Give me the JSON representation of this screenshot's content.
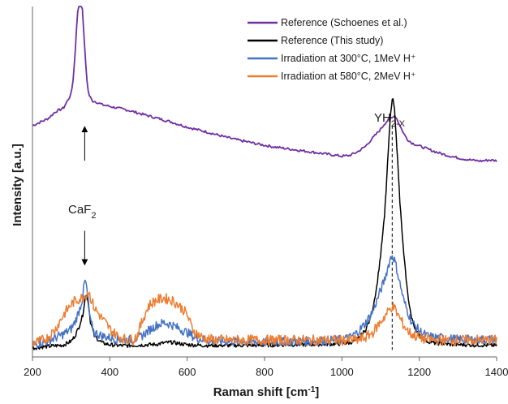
{
  "chart_data": {
    "type": "line",
    "title": "",
    "xlabel_main": "Raman shift [cm",
    "xlabel_sup": "-1",
    "xlabel_end": "]",
    "ylabel": "Intensity [a.u.]",
    "xlim": [
      200,
      1400
    ],
    "ylim": [
      0,
      100
    ],
    "x_ticks": [
      200,
      400,
      600,
      800,
      1000,
      1200,
      1400
    ],
    "x_tick_labels": [
      "200",
      "400",
      "600",
      "800",
      "1000",
      "1200",
      "1400"
    ],
    "grid": false,
    "legend_position": "top-right",
    "series": [
      {
        "name": "Reference (Schoenes et al.)",
        "color": "#7030a0",
        "x": [
          200,
          220,
          240,
          260,
          280,
          290,
          300,
          305,
          310,
          315,
          320,
          325,
          330,
          335,
          340,
          345,
          350,
          355,
          360,
          370,
          380,
          400,
          420,
          440,
          460,
          480,
          500,
          520,
          540,
          560,
          580,
          600,
          620,
          640,
          660,
          680,
          700,
          720,
          740,
          760,
          780,
          800,
          820,
          840,
          860,
          880,
          900,
          920,
          940,
          960,
          980,
          1000,
          1020,
          1040,
          1060,
          1080,
          1100,
          1110,
          1120,
          1130,
          1135,
          1140,
          1150,
          1160,
          1170,
          1180,
          1200,
          1220,
          1240,
          1260,
          1280,
          1300,
          1320,
          1340,
          1360,
          1380,
          1400
        ],
        "values": [
          66,
          67,
          68,
          70,
          71,
          73,
          75,
          79,
          86,
          96,
          102,
          103,
          98,
          88,
          80,
          75,
          74,
          73,
          73,
          72.5,
          72,
          71.5,
          71,
          70.6,
          70,
          69.4,
          68.8,
          68.2,
          67.6,
          67,
          66.3,
          65.6,
          65,
          64.5,
          63.9,
          63.3,
          62.7,
          62.2,
          61.7,
          61.3,
          60.8,
          60.4,
          60,
          59.7,
          59.4,
          59.1,
          58.8,
          58.5,
          58.2,
          57.9,
          57.6,
          57.3,
          57.5,
          58.5,
          60,
          62.5,
          65,
          66.5,
          67.7,
          68.3,
          69,
          68.4,
          66,
          63.7,
          62,
          61.1,
          60.2,
          59.4,
          58.6,
          57.9,
          57.3,
          56.8,
          56.4,
          56.1,
          55.9,
          56.2,
          56
        ]
      },
      {
        "name": "Reference (This study)",
        "color": "#000000",
        "x": [
          200,
          220,
          240,
          260,
          280,
          300,
          310,
          320,
          330,
          335,
          340,
          345,
          350,
          360,
          380,
          400,
          420,
          440,
          460,
          480,
          500,
          520,
          540,
          560,
          580,
          600,
          620,
          640,
          660,
          700,
          740,
          780,
          820,
          860,
          900,
          940,
          980,
          1000,
          1020,
          1040,
          1060,
          1070,
          1080,
          1090,
          1100,
          1110,
          1115,
          1120,
          1125,
          1130,
          1135,
          1140,
          1145,
          1150,
          1160,
          1170,
          1180,
          1190,
          1200,
          1220,
          1240,
          1260,
          1280,
          1300,
          1320,
          1340,
          1360,
          1380,
          1400
        ],
        "values": [
          2.5,
          2.8,
          3,
          3.2,
          3.4,
          4.5,
          6,
          8.5,
          12,
          16,
          18,
          15,
          10,
          6,
          4,
          3.5,
          3.3,
          3.2,
          3.3,
          3.4,
          3.5,
          3.6,
          4,
          4.2,
          3.8,
          3.5,
          3.4,
          3.3,
          3.3,
          3.3,
          3.3,
          3.3,
          3.4,
          3.5,
          3.5,
          3.6,
          3.7,
          3.8,
          4,
          5,
          7.5,
          10,
          14,
          20,
          29,
          40,
          49,
          59,
          68,
          74,
          72,
          64,
          54,
          44,
          29,
          18,
          11,
          8,
          6,
          4.5,
          4,
          3.8,
          3.6,
          3.5,
          3.5,
          3.4,
          3.4,
          3.3,
          3.3
        ]
      },
      {
        "name": "Irradiation at 300°C, 1MeV H⁺",
        "color": "#4472c4",
        "x": [
          200,
          220,
          240,
          260,
          280,
          300,
          310,
          320,
          330,
          335,
          340,
          345,
          350,
          360,
          380,
          400,
          420,
          440,
          460,
          480,
          500,
          520,
          540,
          560,
          580,
          600,
          620,
          640,
          660,
          700,
          740,
          780,
          820,
          860,
          900,
          940,
          980,
          1000,
          1020,
          1040,
          1060,
          1080,
          1090,
          1100,
          1110,
          1120,
          1125,
          1130,
          1135,
          1140,
          1150,
          1160,
          1170,
          1180,
          1200,
          1220,
          1240,
          1260,
          1280,
          1300,
          1320,
          1340,
          1360,
          1380,
          1400
        ],
        "values": [
          3.5,
          4,
          4.5,
          5.5,
          6.5,
          8,
          10,
          13,
          17,
          22,
          20,
          15,
          10,
          7,
          6,
          5.5,
          5,
          4.8,
          5,
          5.8,
          7.5,
          9,
          9.8,
          9.2,
          8,
          7,
          5.5,
          5,
          4.5,
          4.5,
          4.4,
          4.3,
          4.3,
          4.4,
          4.5,
          4.6,
          4.8,
          5,
          5.5,
          7,
          9.5,
          13,
          16,
          19,
          22,
          26,
          28,
          29,
          28,
          26,
          21,
          16,
          13,
          10,
          7.5,
          6,
          5.5,
          5.5,
          5.2,
          5,
          5,
          5,
          5,
          5,
          5
        ]
      },
      {
        "name": "Irradiation at 580°C, 2MeV H⁺",
        "color": "#ed7d31",
        "x": [
          200,
          220,
          240,
          260,
          280,
          300,
          310,
          320,
          330,
          340,
          345,
          350,
          360,
          380,
          400,
          420,
          440,
          460,
          470,
          480,
          490,
          500,
          510,
          520,
          530,
          540,
          550,
          560,
          570,
          580,
          590,
          600,
          610,
          620,
          640,
          660,
          700,
          740,
          780,
          820,
          860,
          900,
          940,
          980,
          1000,
          1020,
          1040,
          1060,
          1080,
          1090,
          1100,
          1110,
          1120,
          1130,
          1135,
          1140,
          1150,
          1160,
          1170,
          1180,
          1200,
          1220,
          1240,
          1260,
          1280,
          1300,
          1320,
          1340,
          1360,
          1380,
          1400
        ],
        "values": [
          4,
          4.5,
          5.5,
          8,
          12,
          15,
          16,
          16.5,
          17,
          18,
          19,
          17,
          14,
          11,
          8,
          6,
          5,
          5,
          6,
          9,
          12,
          14.5,
          15.5,
          16.2,
          16.5,
          16.8,
          16.5,
          16.2,
          15.5,
          14.5,
          13.5,
          12,
          9,
          7,
          5.5,
          5,
          4.8,
          4.8,
          4.8,
          4.8,
          4.8,
          4.8,
          4.8,
          4.8,
          4.8,
          4.8,
          4.8,
          5.5,
          7,
          8.5,
          10,
          11.5,
          13,
          14.5,
          14,
          13,
          11,
          9,
          7.5,
          6.5,
          5.5,
          5,
          4.8,
          4.8,
          4.8,
          4.8,
          4.8,
          4.8,
          4.8,
          4.8,
          4.8
        ]
      }
    ],
    "annotations": {
      "caf2_main": "CaF",
      "caf2_sub": "2",
      "yh_main": "YH",
      "yh_sub": "2-X",
      "peak_line_x": 1130,
      "caf2_arrow_x": 335
    }
  }
}
